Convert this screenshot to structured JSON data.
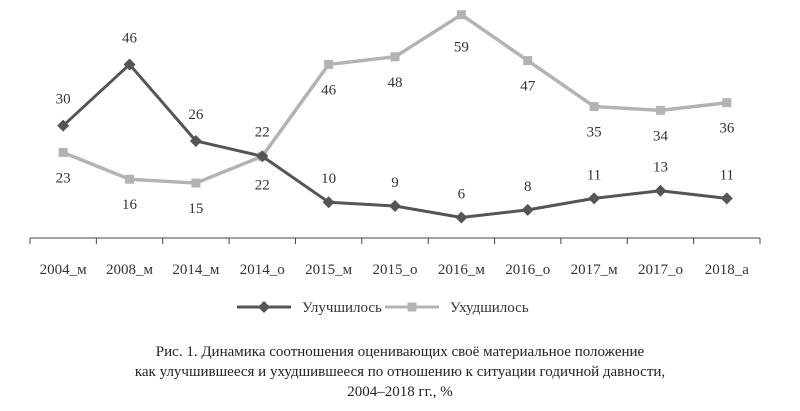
{
  "chart_data": {
    "type": "line",
    "categories": [
      "2004_м",
      "2008_м",
      "2014_м",
      "2014_о",
      "2015_м",
      "2015_о",
      "2016_м",
      "2016_о",
      "2017_м",
      "2017_о",
      "2018_а"
    ],
    "series": [
      {
        "name": "Улучшилось",
        "values": [
          30,
          46,
          26,
          22,
          10,
          9,
          6,
          8,
          11,
          13,
          11
        ],
        "color": "#555555",
        "marker": "diamond"
      },
      {
        "name": "Ухудшилось",
        "values": [
          23,
          16,
          15,
          22,
          46,
          48,
          59,
          47,
          35,
          34,
          36
        ],
        "color": "#b3b3b3",
        "marker": "square"
      }
    ],
    "ylim": [
      0,
      60
    ],
    "grid": false,
    "legend": "bottom"
  },
  "caption": {
    "line1": "Рис. 1. Динамика соотношения оценивающих своё материальное положение",
    "line2": "как улучшившееся и ухудшившееся по отношению к ситуации годичной давности,",
    "line3": "2004–2018 гг., %"
  }
}
